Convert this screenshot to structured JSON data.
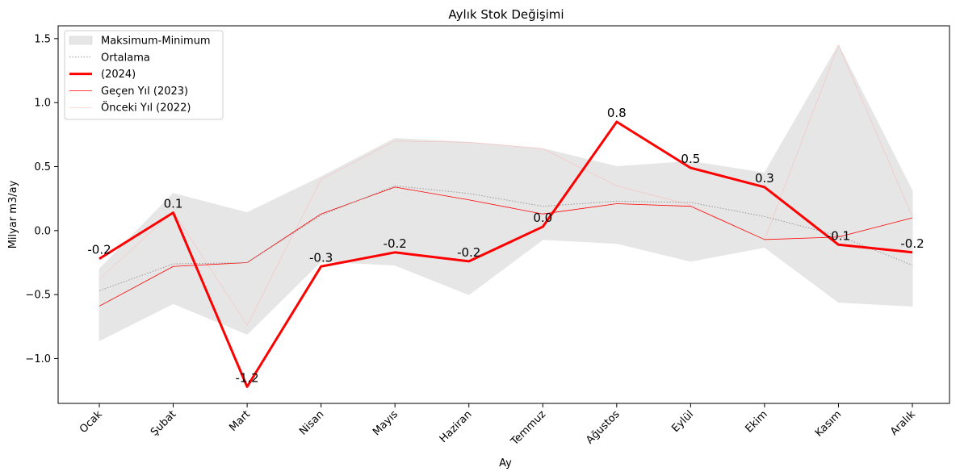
{
  "chart_data": {
    "type": "line",
    "title": "Aylık Stok Değişimi",
    "xlabel": "Ay",
    "ylabel": "Milyar m3/ay",
    "categories": [
      "Ocak",
      "Şubat",
      "Mart",
      "Nisan",
      "Mayıs",
      "Haziran",
      "Temmuz",
      "Ağustos",
      "Eylül",
      "Ekim",
      "Kasım",
      "Aralık"
    ],
    "ylim": [
      -1.35,
      1.6
    ],
    "yticks": [
      -1.0,
      -0.5,
      0.0,
      0.5,
      1.0,
      1.5
    ],
    "ytick_labels": [
      "−1.0",
      "−0.5",
      "0.0",
      "0.5",
      "1.0",
      "1.5"
    ],
    "grid": false,
    "legend_position": "top-left",
    "band": {
      "name": "Maksimum-Minimum",
      "color": "#e6e6e6",
      "upper": [
        -0.3,
        0.29,
        0.14,
        0.42,
        0.72,
        0.69,
        0.64,
        0.5,
        0.54,
        0.45,
        1.45,
        0.31
      ],
      "lower": [
        -0.86,
        -0.57,
        -0.81,
        -0.24,
        -0.27,
        -0.5,
        -0.07,
        -0.1,
        -0.24,
        -0.13,
        -0.56,
        -0.59
      ]
    },
    "series": [
      {
        "name": "Ortalama",
        "color": "#999999",
        "style": "dotted",
        "width": 1,
        "values": [
          -0.47,
          -0.26,
          -0.25,
          0.12,
          0.35,
          0.29,
          0.19,
          0.23,
          0.22,
          0.11,
          -0.04,
          -0.27
        ]
      },
      {
        "name": " (2024)",
        "color": "#ff0000",
        "style": "solid",
        "width": 3,
        "values": [
          -0.22,
          0.14,
          -1.22,
          -0.28,
          -0.17,
          -0.24,
          0.03,
          0.85,
          0.49,
          0.34,
          -0.11,
          -0.17
        ],
        "labels": [
          "-0.2",
          "0.1",
          "-1.2",
          "-0.3",
          "-0.2",
          "-0.2",
          "0.0",
          "0.8",
          "0.5",
          "0.3",
          "-0.1",
          "-0.2"
        ]
      },
      {
        "name": "Geçen Yıl (2023)",
        "color": "#ff0000",
        "style": "solid",
        "width": 0.8,
        "values": [
          -0.59,
          -0.28,
          -0.25,
          0.13,
          0.34,
          0.24,
          0.13,
          0.21,
          0.19,
          -0.07,
          -0.05,
          0.1
        ]
      },
      {
        "name": "Önceki Yıl (2022)",
        "color": "#ffb3b3",
        "style": "solid",
        "width": 0.5,
        "values": [
          -0.38,
          0.15,
          -0.74,
          0.4,
          0.7,
          0.69,
          0.64,
          0.35,
          0.2,
          -0.07,
          1.45,
          0.11
        ]
      }
    ]
  }
}
